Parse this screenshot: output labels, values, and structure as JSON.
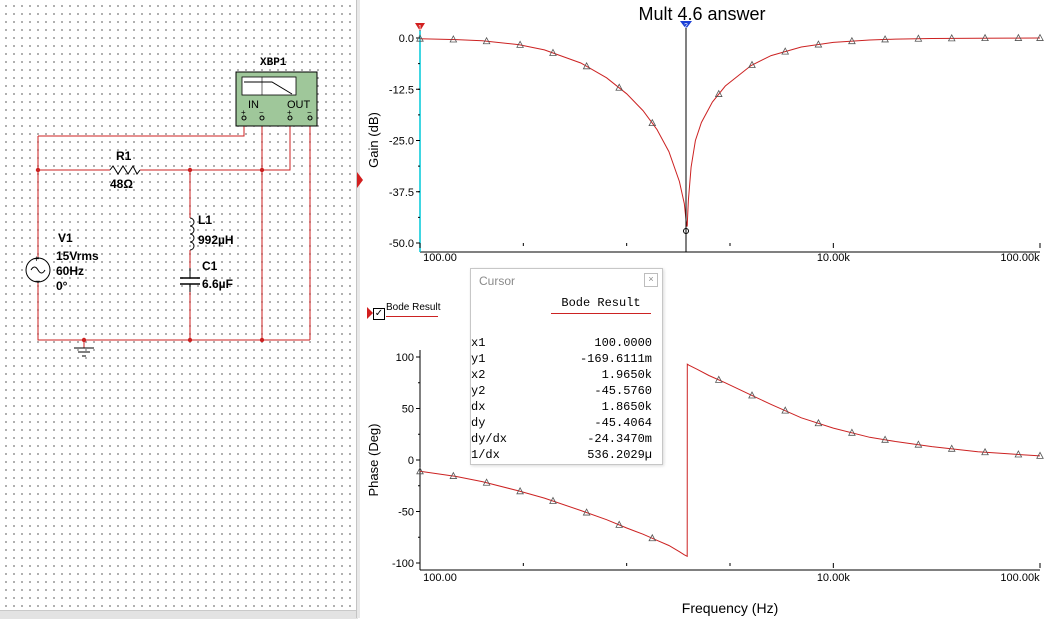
{
  "schematic": {
    "instrument_name": "XBP1",
    "instrument_in_label": "IN",
    "instrument_out_label": "OUT",
    "instrument_pin_plus_1": "+",
    "instrument_pin_minus_1": "−",
    "instrument_pin_plus_2": "+",
    "instrument_pin_minus_2": "−",
    "r1_name": "R1",
    "r1_value": "48Ω",
    "l1_name": "L1",
    "l1_value": "992µH",
    "c1_name": "C1",
    "c1_value": "6.6µF",
    "v1_name": "V1",
    "v1_amplitude": "15Vrms",
    "v1_frequency": "60Hz",
    "v1_phase": "0°",
    "v1_plus": "+",
    "v1_minus": "−",
    "wire_color": "#cc2222",
    "component_color": "#000000"
  },
  "grapher": {
    "title": "Mult 4.6 answer",
    "trace_color": "#cc2222"
  },
  "chart_data": [
    {
      "type": "line",
      "title": "Mult 4.6 answer",
      "ylabel": "Gain (dB)",
      "xlabel": "",
      "x_scale": "log",
      "xlim": [
        100,
        100000
      ],
      "ylim": [
        -50,
        0
      ],
      "grid": false,
      "yticks": [
        0.0,
        -12.5,
        -25.0,
        -37.5,
        -50.0
      ],
      "ytick_labels": [
        "0.0",
        "-12.5",
        "-25.0",
        "-37.5",
        "-50.0"
      ],
      "xtick_labels": [
        "100.00",
        "10.00k",
        "100.00k"
      ],
      "series": [
        {
          "x": [
            100,
            150,
            200,
            300,
            400,
            600,
            800,
            1000,
            1200,
            1400,
            1600,
            1800,
            1900,
            1940,
            1960,
            1965,
            1970,
            1990,
            2050,
            2150,
            2300,
            2600,
            3000,
            4000,
            5000,
            7000,
            10000,
            15000,
            20000,
            30000,
            50000,
            70000,
            100000
          ],
          "y": [
            -0.17,
            -0.38,
            -0.68,
            -1.6,
            -2.9,
            -6.1,
            -9.7,
            -13.6,
            -17.7,
            -22.3,
            -27.7,
            -35.0,
            -40.4,
            -44.5,
            -46.0,
            -45.6,
            -44.2,
            -39.5,
            -31.5,
            -25.0,
            -20.6,
            -15.6,
            -11.7,
            -6.7,
            -4.3,
            -2.2,
            -1.08,
            -0.48,
            -0.27,
            -0.12,
            -0.04,
            -0.02,
            -0.01
          ]
        }
      ],
      "markers_x": [
        100,
        145,
        210,
        305,
        440,
        640,
        920,
        1330,
        1965,
        2790,
        4040,
        5850,
        8470,
        12300,
        17800,
        25800,
        37400,
        54200,
        78600,
        100000
      ],
      "cursors": {
        "x1": 100,
        "x2": 1965
      }
    },
    {
      "type": "line",
      "title": "",
      "ylabel": "Phase (Deg)",
      "xlabel": "Frequency (Hz)",
      "x_scale": "log",
      "xlim": [
        100,
        100000
      ],
      "ylim": [
        -100,
        100
      ],
      "grid": false,
      "yticks": [
        100,
        50,
        0,
        -50,
        -100
      ],
      "ytick_labels": [
        "100",
        "50",
        "0",
        "-50",
        "-100"
      ],
      "xtick_labels": [
        "100.00",
        "10.00k",
        "100.00k"
      ],
      "series": [
        {
          "name": "Bode Result",
          "x": [
            100,
            150,
            200,
            300,
            400,
            600,
            800,
            1000,
            1200,
            1400,
            1600,
            1800,
            1900,
            1964,
            1966,
            2000,
            2200,
            2500,
            3000,
            4000,
            5000,
            7000,
            10000,
            15000,
            20000,
            30000,
            50000,
            70000,
            100000
          ],
          "y": [
            -11,
            -16,
            -21,
            -30,
            -37,
            -49,
            -58,
            -66,
            -72,
            -78,
            -83,
            -89,
            -92,
            -93.5,
            93,
            92,
            88,
            82,
            75,
            63,
            54,
            41,
            31,
            22,
            18,
            13,
            8,
            6,
            4
          ]
        }
      ],
      "markers_x": [
        100,
        145,
        210,
        305,
        440,
        640,
        920,
        1330,
        1965,
        2790,
        4040,
        5850,
        8470,
        12300,
        17800,
        25800,
        37400,
        54200,
        78600,
        100000
      ]
    }
  ],
  "cursor_window": {
    "title": "Cursor",
    "close_glyph": "×",
    "column_header": "Bode Result",
    "rows": [
      {
        "label": "x1",
        "value": "100.0000"
      },
      {
        "label": "y1",
        "value": "-169.6111m"
      },
      {
        "label": "x2",
        "value": "1.9650k"
      },
      {
        "label": "y2",
        "value": "-45.5760"
      },
      {
        "label": "dx",
        "value": "1.8650k"
      },
      {
        "label": "dy",
        "value": "-45.4064"
      },
      {
        "label": "dy/dx",
        "value": "-24.3470m"
      },
      {
        "label": "1/dx",
        "value": "536.2029µ"
      }
    ]
  },
  "legend": {
    "checkbox_mark": "✓",
    "label": "Bode Result",
    "checked": true
  },
  "cursor_marker_1": "1",
  "cursor_marker_2": "2"
}
